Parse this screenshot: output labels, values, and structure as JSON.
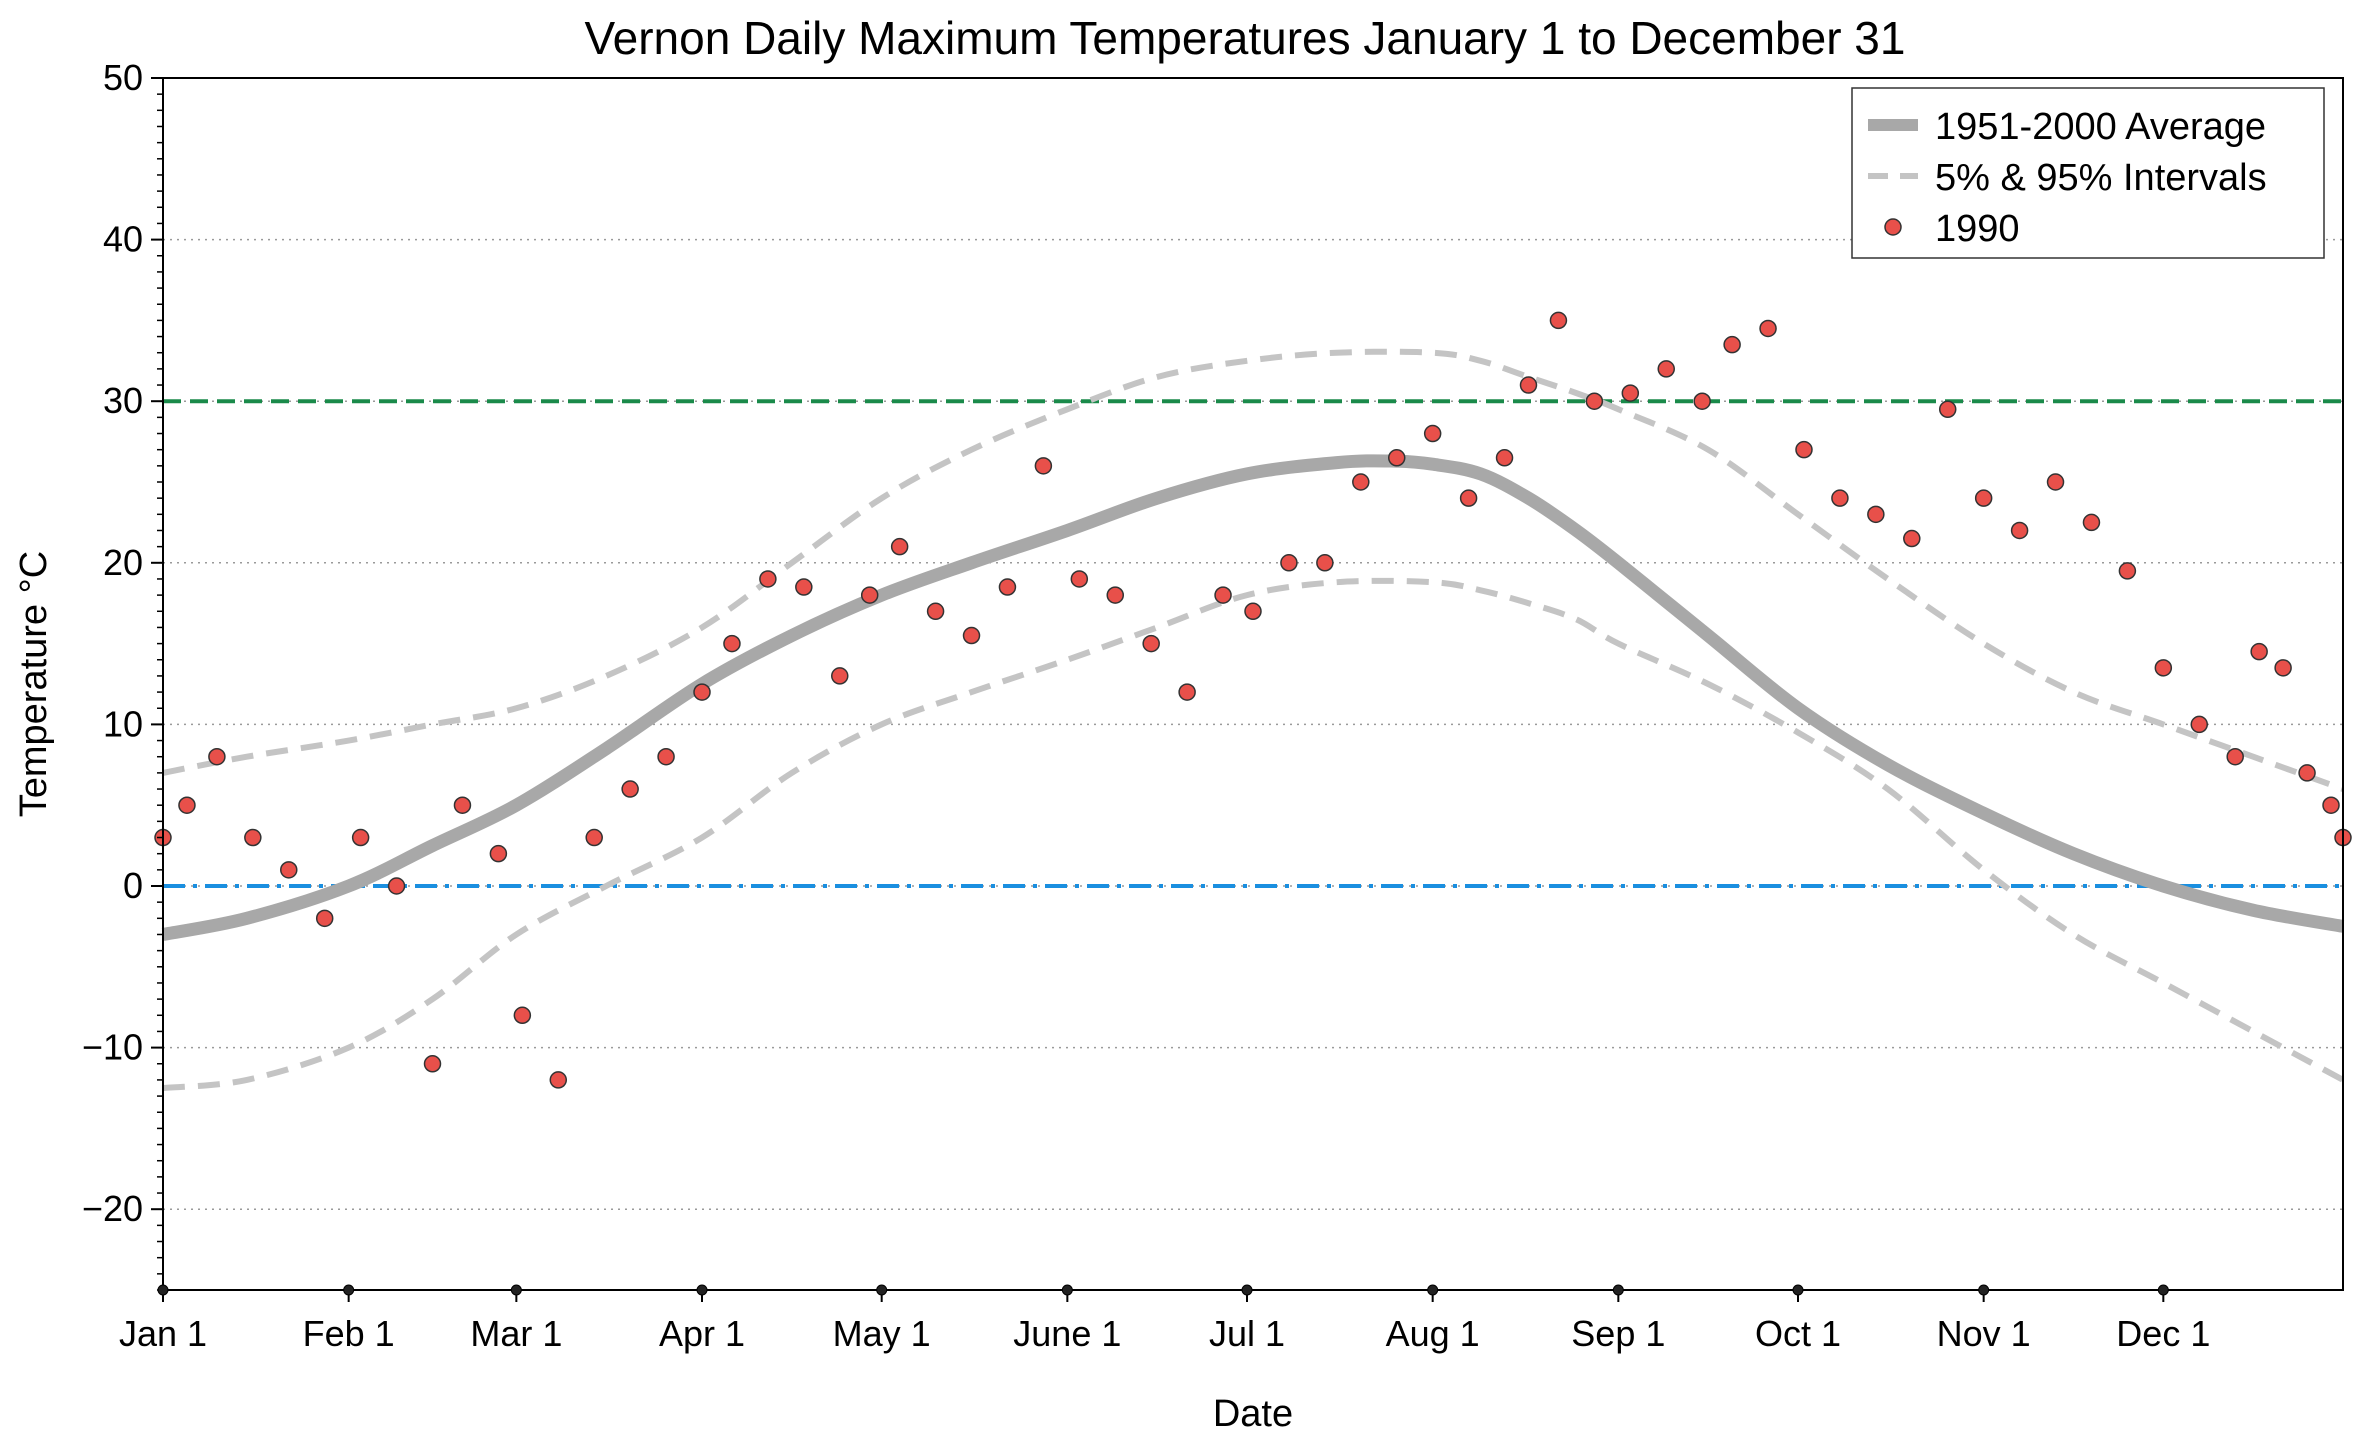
{
  "chart_data": {
    "type": "line",
    "title": "Vernon Daily Maximum Temperatures January 1 to December 31",
    "xlabel": "Date",
    "ylabel": "Temperature °C",
    "xlim": [
      1,
      365
    ],
    "ylim": [
      -25,
      50
    ],
    "y_ticks": [
      -20,
      -10,
      0,
      10,
      20,
      30,
      40,
      50
    ],
    "y_tick_labels": [
      "−20",
      "−10",
      "0",
      "10",
      "20",
      "30",
      "40",
      "50"
    ],
    "x_ticks": [
      1,
      32,
      60,
      91,
      121,
      152,
      182,
      213,
      244,
      274,
      305,
      335
    ],
    "x_tick_labels": [
      "Jan 1",
      "Feb 1",
      "Mar 1",
      "Apr 1",
      "May 1",
      "June 1",
      "Jul 1",
      "Aug 1",
      "Sep 1",
      "Oct 1",
      "Nov 1",
      "Dec 1"
    ],
    "grid": "horizontal-dotted",
    "legend_position": "top-right",
    "reference_lines": [
      {
        "y": 30,
        "color": "#1a8a4a",
        "style": "dashed"
      },
      {
        "y": 0,
        "color": "#1a8fe0",
        "style": "dash-dot"
      }
    ],
    "series": [
      {
        "name": "1951-2000 Average",
        "kind": "line",
        "color": "#a8a8a8",
        "style": "solid-thick",
        "x": [
          1,
          15,
          32,
          46,
          60,
          75,
          91,
          106,
          121,
          136,
          152,
          167,
          182,
          197,
          206,
          213,
          221,
          229,
          237,
          244,
          259,
          274,
          289,
          305,
          320,
          335,
          350,
          365
        ],
        "y": [
          -3,
          -2,
          0,
          2.5,
          5,
          8.5,
          12.5,
          15.5,
          18,
          20,
          22,
          24,
          25.5,
          26.2,
          26.3,
          26.1,
          25.5,
          24,
          22,
          20,
          15.5,
          11,
          7.5,
          4.5,
          2,
          0,
          -1.5,
          -2.5
        ]
      },
      {
        "name": "5% & 95% Intervals",
        "kind": "line",
        "color": "#c4c4c4",
        "style": "dashed",
        "x": [
          1,
          15,
          32,
          46,
          60,
          75,
          91,
          106,
          121,
          136,
          152,
          167,
          182,
          197,
          213,
          221,
          229,
          237,
          244,
          259,
          274,
          289,
          305,
          320,
          335,
          350,
          365
        ],
        "y": [
          7,
          8,
          9,
          10,
          11,
          13,
          16,
          20,
          24,
          27,
          29.5,
          31.5,
          32.5,
          33,
          33,
          32.5,
          31.5,
          30.5,
          29.5,
          27,
          23,
          19,
          15,
          12,
          10,
          8,
          6
        ]
      },
      {
        "name": "",
        "kind": "line",
        "color": "#c4c4c4",
        "style": "dashed",
        "x": [
          1,
          15,
          32,
          46,
          60,
          75,
          91,
          106,
          121,
          136,
          152,
          167,
          182,
          197,
          213,
          221,
          229,
          237,
          244,
          259,
          274,
          289,
          305,
          320,
          335,
          350,
          365
        ],
        "y": [
          -12.5,
          -12,
          -10,
          -7,
          -3,
          0,
          3,
          7,
          10,
          12,
          14,
          16,
          18,
          18.8,
          18.8,
          18.3,
          17.5,
          16.5,
          15,
          12.5,
          9.5,
          6,
          1,
          -3,
          -6,
          -9,
          -12
        ]
      },
      {
        "name": "1990",
        "kind": "scatter",
        "color": "#e8504a",
        "x": [
          1,
          5,
          10,
          16,
          22,
          28,
          34,
          40,
          46,
          51,
          57,
          61,
          67,
          73,
          79,
          85,
          91,
          96,
          102,
          108,
          114,
          119,
          124,
          130,
          136,
          142,
          148,
          154,
          160,
          166,
          172,
          178,
          183,
          189,
          195,
          201,
          207,
          213,
          219,
          225,
          229,
          234,
          240,
          246,
          252,
          258,
          263,
          269,
          275,
          281,
          287,
          293,
          299,
          305,
          311,
          317,
          323,
          329,
          335,
          341,
          347,
          351,
          355,
          359,
          363,
          365
        ],
        "y": [
          3,
          5,
          8,
          3,
          1,
          -2,
          3,
          0,
          -11,
          5,
          2,
          -8,
          -12,
          3,
          6,
          8,
          12,
          15,
          19,
          18.5,
          13,
          18,
          21,
          17,
          15.5,
          18.5,
          26,
          19,
          18,
          15,
          12,
          18,
          17,
          20,
          20,
          25,
          26.5,
          28,
          24,
          26.5,
          31,
          35,
          30,
          30.5,
          32,
          30,
          33.5,
          34.5,
          27,
          24,
          23,
          21.5,
          29.5,
          24,
          22,
          25,
          22.5,
          19.5,
          13.5,
          10,
          8,
          14.5,
          13.5,
          7,
          5,
          3
        ]
      }
    ]
  }
}
